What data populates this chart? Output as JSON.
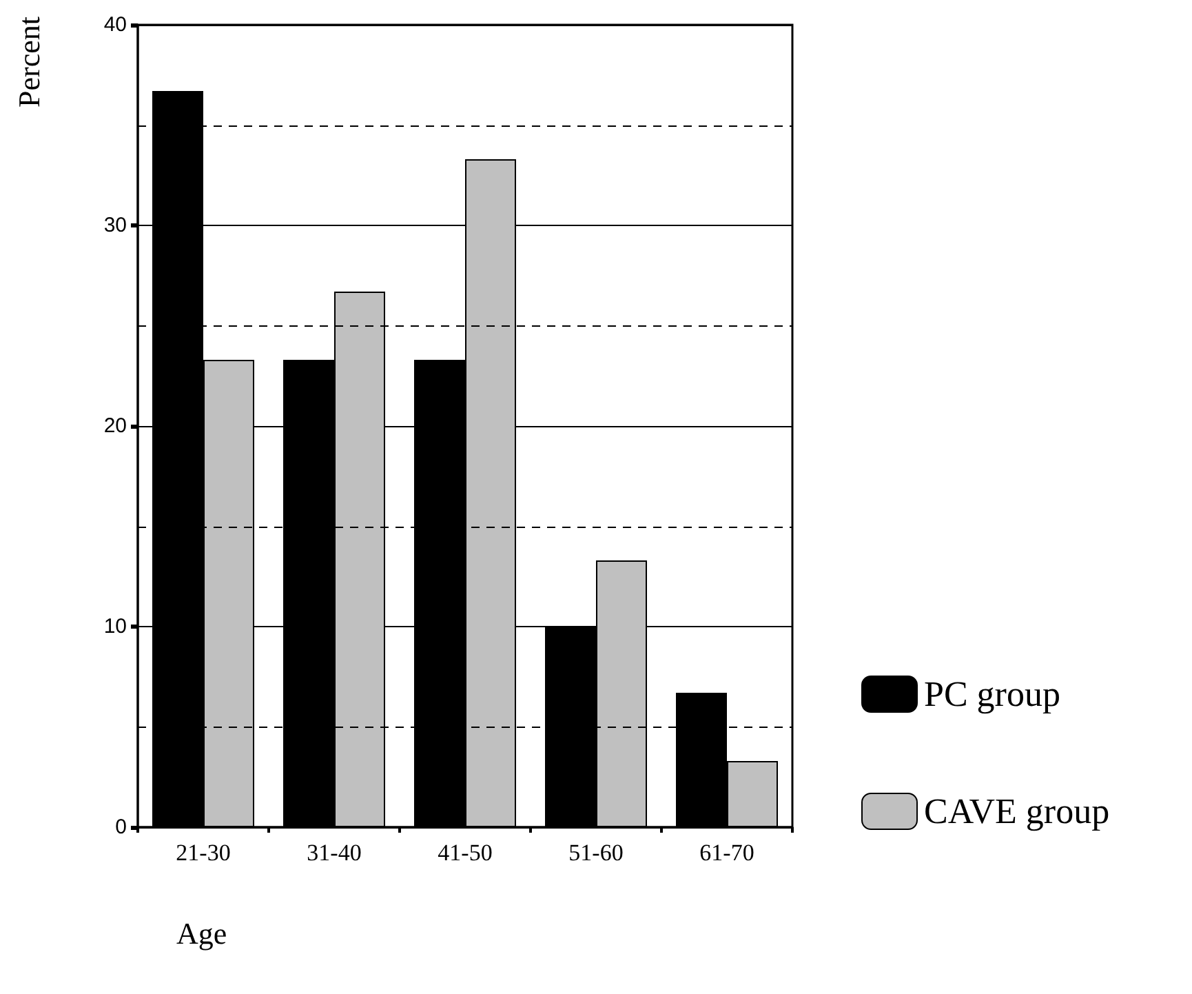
{
  "chart_data": {
    "type": "bar",
    "xlabel": "Age",
    "ylabel": "Percent",
    "categories": [
      "21-30",
      "31-40",
      "41-50",
      "51-60",
      "61-70"
    ],
    "series": [
      {
        "name": "PC group",
        "color": "#000000",
        "values": [
          36.7,
          23.3,
          23.3,
          10,
          6.7
        ]
      },
      {
        "name": "CAVE group",
        "color": "#c0c0c0",
        "values": [
          23.3,
          26.7,
          33.3,
          13.3,
          3.3
        ]
      }
    ],
    "ylim": [
      0,
      40
    ],
    "yticks": [
      0,
      10,
      20,
      30,
      40
    ],
    "grid": "y",
    "legend": "bottom right",
    "ref_lines": [
      {
        "axis": "y",
        "value": 5,
        "line_style": "dashed",
        "color": "#000000"
      },
      {
        "axis": "y",
        "value": 15,
        "line_style": "dashed",
        "color": "#000000"
      },
      {
        "axis": "y",
        "value": 25,
        "line_style": "dashed",
        "color": "#000000"
      },
      {
        "axis": "y",
        "value": 35,
        "line_style": "dashed",
        "color": "#000000"
      }
    ]
  }
}
